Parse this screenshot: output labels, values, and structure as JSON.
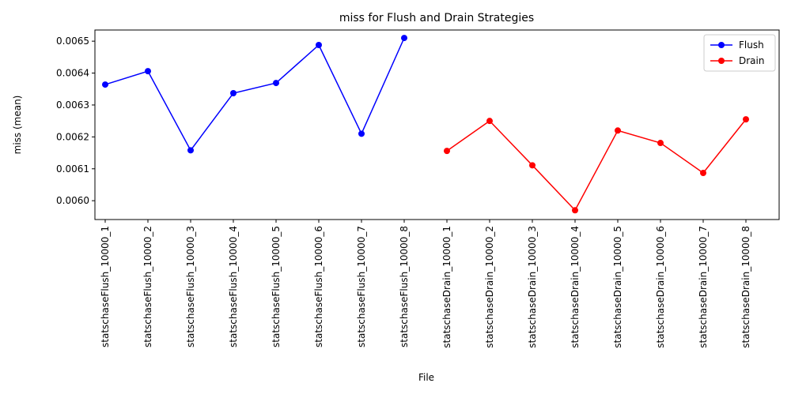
{
  "chart_data": {
    "type": "line",
    "title": "miss for Flush and Drain Strategies",
    "xlabel": "File",
    "ylabel": "miss (mean)",
    "categories": [
      "statschaseFlush_10000_1",
      "statschaseFlush_10000_2",
      "statschaseFlush_10000_3",
      "statschaseFlush_10000_4",
      "statschaseFlush_10000_5",
      "statschaseFlush_10000_6",
      "statschaseFlush_10000_7",
      "statschaseFlush_10000_8",
      "statschaseDrain_10000_1",
      "statschaseDrain_10000_2",
      "statschaseDrain_10000_3",
      "statschaseDrain_10000_4",
      "statschaseDrain_10000_5",
      "statschaseDrain_10000_6",
      "statschaseDrain_10000_7",
      "statschaseDrain_10000_8"
    ],
    "series": [
      {
        "name": "Flush",
        "color": "#0000ff",
        "values": [
          0.006364,
          0.006406,
          0.006158,
          0.006337,
          0.006369,
          0.006488,
          0.00621,
          0.00651,
          null,
          null,
          null,
          null,
          null,
          null,
          null,
          null
        ]
      },
      {
        "name": "Drain",
        "color": "#ff0000",
        "values": [
          null,
          null,
          null,
          null,
          null,
          null,
          null,
          null,
          0.006156,
          0.00625,
          0.006111,
          0.00597,
          0.00622,
          0.006181,
          0.006087,
          0.006255
        ]
      }
    ],
    "ylim": [
      0.005941,
      0.006535
    ],
    "yticks": [
      {
        "value": 0.006,
        "label": "0.0060"
      },
      0.0061,
      0.0062,
      0.0063,
      0.0064,
      0.0065
    ],
    "grid": false,
    "legend": "upper right"
  }
}
